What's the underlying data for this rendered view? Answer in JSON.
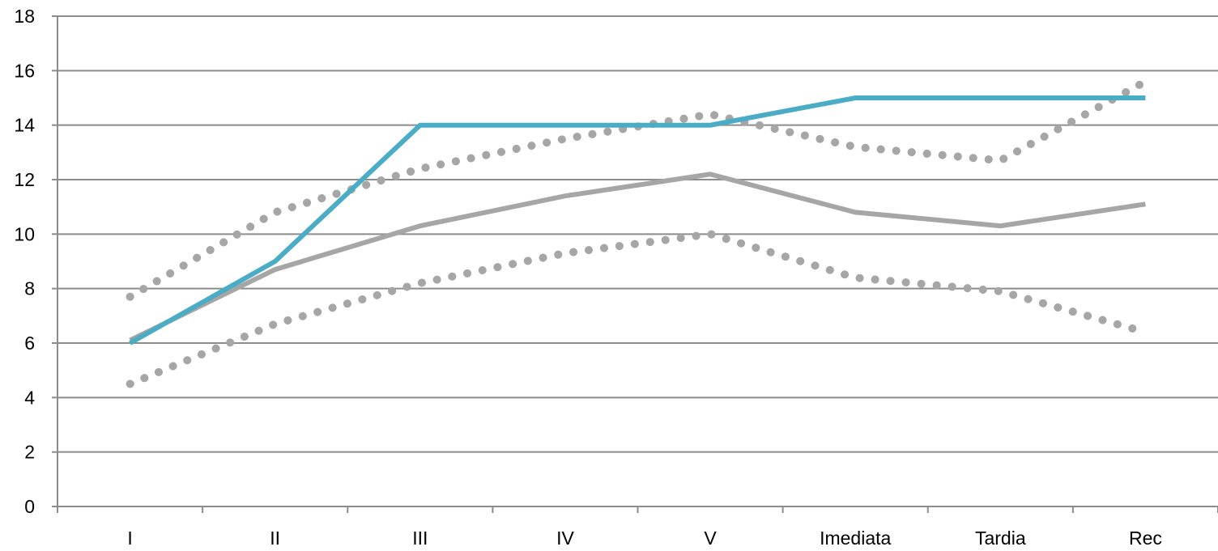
{
  "chart_data": {
    "type": "line",
    "title": "",
    "xlabel": "",
    "ylabel": "",
    "categories": [
      "I",
      "II",
      "III",
      "IV",
      "V",
      "Imediata",
      "Tardia",
      "Rec"
    ],
    "ylim": [
      0,
      18
    ],
    "yticks": [
      0,
      2,
      4,
      6,
      8,
      10,
      12,
      14,
      16,
      18
    ],
    "grid": true,
    "legend": "none",
    "series": [
      {
        "values": [
          6.0,
          9.0,
          14.0,
          14.0,
          14.0,
          15.0,
          15.0,
          15.0
        ],
        "color": "#4bacc6",
        "style": "solid"
      },
      {
        "values": [
          6.1,
          8.7,
          10.3,
          11.4,
          12.2,
          10.8,
          10.3,
          11.1
        ],
        "color": "#a6a6a6",
        "style": "solid"
      },
      {
        "values": [
          7.7,
          10.8,
          12.4,
          13.5,
          14.4,
          13.2,
          12.7,
          15.6
        ],
        "color": "#a6a6a6",
        "style": "dotted"
      },
      {
        "values": [
          4.5,
          6.7,
          8.2,
          9.3,
          10.0,
          8.4,
          7.9,
          6.4
        ],
        "color": "#a6a6a6",
        "style": "dotted"
      }
    ]
  }
}
